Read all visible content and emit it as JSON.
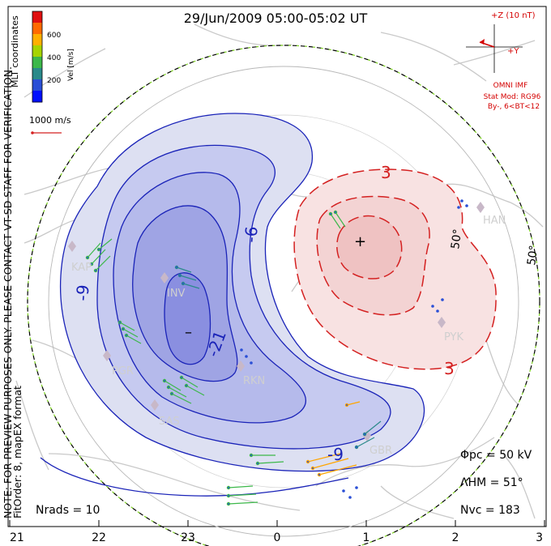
{
  "title": "29/Jun/2009 05:00-05:02 UT",
  "side_note_line1": "NOTE: FOR PREVIEW PURPOSES ONLY. PLEASE CONTACT VT-SD STAFF FOR VERIFICATION.",
  "side_note_line2": "FitOrder: 8, mapEX format",
  "mlt_label": "MLT coordinates",
  "colorbar": {
    "axis_label": "Vel [m/s]",
    "ticks": [
      "600",
      "400",
      "200"
    ],
    "colors": [
      "#e01010",
      "#ff6a00",
      "#ffb000",
      "#a6d400",
      "#3cb84a",
      "#2a8a8a",
      "#2a4fd6",
      "#0010ff"
    ]
  },
  "scale_vector_label": "1000 m/s",
  "imf": {
    "magnitude_label": "+Z (10 nT)",
    "y_label": "+Y",
    "source_label": "OMNI IMF",
    "model_label": "Stat Mod: RG96",
    "condition_label": "By-, 6<BT<12"
  },
  "stations": [
    "KAP",
    "INV",
    "PGR",
    "RKN",
    "SAS",
    "GBR",
    "PYK",
    "HAN"
  ],
  "contour_labels": {
    "neg": [
      "-9",
      "-6",
      "-21"
    ],
    "pos": [
      "3",
      "3"
    ],
    "neg_bottom": "-9"
  },
  "potential_markers": {
    "min": "–",
    "max": "+"
  },
  "latitude_labels": [
    "50°",
    "50°"
  ],
  "stats": {
    "phi_pc": "Φpc = 50 kV",
    "lambda_hm": "ΛHM = 51°",
    "n_vc": "Nvc = 183",
    "n_rads": "Nrads = 10"
  },
  "x_axis_ticks": [
    "21",
    "22",
    "23",
    "0",
    "1",
    "2",
    "3"
  ],
  "colors": {
    "neg_contour": "#1a23b8",
    "neg_fill_light": "#dde0f2",
    "neg_fill_mid": "#b8bceb",
    "neg_fill_dark": "#8a8fe0",
    "pos_contour": "#d42020",
    "pos_fill_light": "#f8e2e2",
    "pos_fill_mid": "#f0c6c6",
    "coast": "#c9c9c9",
    "title": "#000000",
    "imf_text": "#d40000"
  }
}
